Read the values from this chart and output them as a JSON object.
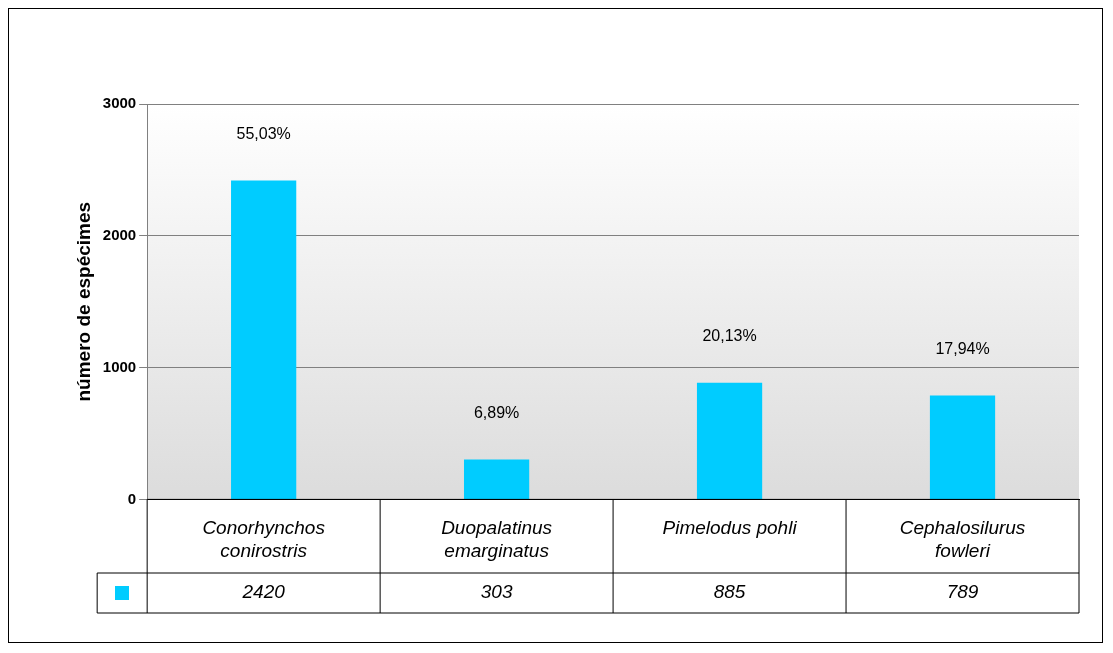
{
  "chart_data": {
    "type": "bar",
    "ylabel": "número de espécimes",
    "categories": [
      "Conorhynchos conirostris",
      "Duopalatinus emarginatus",
      "Pimelodus pohli",
      "Cephalosilurus fowleri"
    ],
    "values": [
      2420,
      303,
      885,
      789
    ],
    "value_labels": [
      "2420",
      "303",
      "885",
      "789"
    ],
    "annotations": [
      {
        "text": "55,03%",
        "x": "Conorhynchos conirostris",
        "y": 2420
      },
      {
        "text": "6,89%",
        "x": "Duopalatinus emarginatus",
        "y": 303
      },
      {
        "text": "20,13%",
        "x": "Pimelodus pohli",
        "y": 885
      },
      {
        "text": "17,94%",
        "x": "Cephalosilurus fowleri",
        "y": 789
      }
    ],
    "color": "#00ccff",
    "ylim": [
      0,
      3000
    ],
    "yticks": [
      0,
      1000,
      2000,
      3000
    ],
    "grid": "y"
  }
}
